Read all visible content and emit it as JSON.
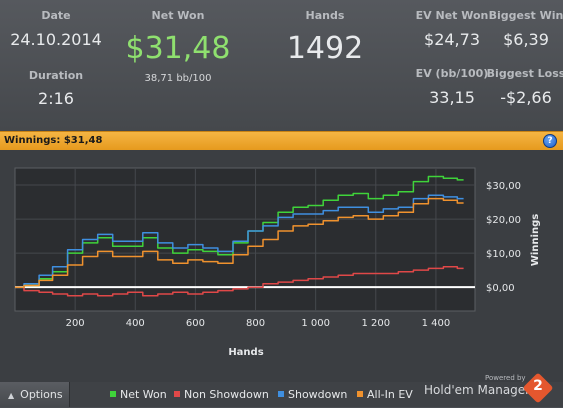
{
  "summary": {
    "date_label": "Date",
    "date_value": "24.10.2014",
    "netwon_label": "Net Won",
    "netwon_value": "$31,48",
    "netwon_sub": "38,71 bb/100",
    "hands_label": "Hands",
    "hands_value": "1492",
    "ev_net_won_label": "EV Net Won",
    "ev_net_won_value": "$24,73",
    "biggest_win_label": "Biggest Win",
    "biggest_win_value": "$6,39",
    "duration_label": "Duration",
    "duration_value": "2:16",
    "ev_bb_label": "EV (bb/100)",
    "ev_bb_value": "33,15",
    "biggest_loss_label": "Biggest Loss",
    "biggest_loss_value": "-$2,66"
  },
  "winnings_bar": {
    "label": "Winnings: $31,48",
    "help_icon": "help-icon",
    "help_glyph": "?"
  },
  "footer": {
    "options_label": "Options",
    "options_icon": "caret-up-icon",
    "powered_by": "Powered by",
    "brand": "Hold'em Manager",
    "brand_version": "2"
  },
  "colors": {
    "net_won": "#3fd33a",
    "non_showdown": "#e04848",
    "showdown": "#3f8fe0",
    "all_in_ev": "#f0922e",
    "zero_line": "#ffffff"
  },
  "chart_data": {
    "type": "line",
    "xlabel": "Hands",
    "ylabel": "Winnings",
    "xlim": [
      0,
      1530
    ],
    "ylim": [
      -7,
      35
    ],
    "x_ticks": [
      200,
      400,
      600,
      800,
      1000,
      1200,
      1400
    ],
    "x_tick_labels": [
      "200",
      "400",
      "600",
      "800",
      "1 000",
      "1 200",
      "1 400"
    ],
    "y_ticks": [
      0,
      10,
      20,
      30
    ],
    "y_tick_labels": [
      "$0,00",
      "$10,00",
      "$20,00",
      "$30,00"
    ],
    "grid": true,
    "legend_position": "bottom",
    "x": [
      0,
      60,
      100,
      150,
      200,
      250,
      300,
      350,
      400,
      450,
      500,
      550,
      600,
      650,
      700,
      750,
      800,
      850,
      900,
      950,
      1000,
      1050,
      1100,
      1150,
      1200,
      1250,
      1300,
      1350,
      1400,
      1450,
      1492
    ],
    "series": [
      {
        "name": "Net Won",
        "color": "#3fd33a",
        "values": [
          0,
          0.5,
          2.5,
          4.5,
          10,
          13,
          14.5,
          12,
          12,
          14.5,
          11.5,
          10,
          11,
          10.5,
          9.5,
          13,
          16.5,
          19,
          22,
          23.5,
          24,
          25.5,
          27,
          27.5,
          26,
          27,
          28,
          31,
          32.5,
          32,
          31.5
        ]
      },
      {
        "name": "Non Showdown",
        "color": "#e04848",
        "values": [
          0,
          -1,
          -1.5,
          -2,
          -2.5,
          -2,
          -2.5,
          -2,
          -1.5,
          -2.5,
          -2,
          -1.5,
          -2,
          -1.5,
          -1,
          -0.5,
          0,
          1,
          1.5,
          2,
          2.5,
          3,
          3.5,
          4,
          4,
          4,
          4.5,
          5,
          5.5,
          6,
          5.5
        ]
      },
      {
        "name": "Showdown",
        "color": "#3f8fe0",
        "values": [
          0,
          1,
          3.5,
          6,
          11,
          14,
          15.5,
          13.5,
          13.5,
          16,
          13,
          11.5,
          12.5,
          11.5,
          10.5,
          13.5,
          16.5,
          18,
          20.5,
          21.5,
          21.5,
          22.5,
          23.5,
          23.5,
          22,
          23,
          23.5,
          26,
          27,
          26.5,
          26
        ]
      },
      {
        "name": "All-In EV",
        "color": "#f0922e",
        "values": [
          0,
          0.5,
          2,
          3.5,
          6.5,
          9,
          10.5,
          9,
          9,
          10.5,
          8,
          7,
          8,
          7.5,
          7,
          9.5,
          12,
          14,
          16.5,
          18,
          18.5,
          19.5,
          20.5,
          21,
          20,
          21,
          22,
          24.5,
          26,
          25.5,
          24.73
        ]
      }
    ]
  }
}
